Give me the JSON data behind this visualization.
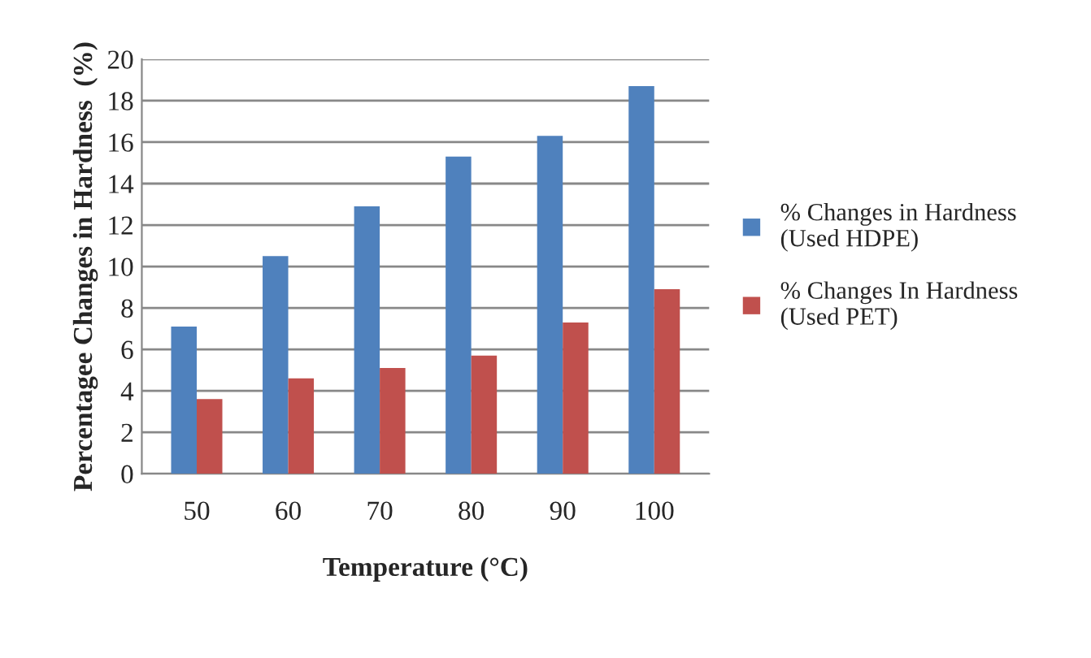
{
  "chart_data": {
    "type": "bar",
    "xlabel": "Temperature (°C)",
    "ylabel": "Percentagee Changes in Hardness  (%)",
    "categories": [
      "50",
      "60",
      "70",
      "80",
      "90",
      "100"
    ],
    "series": [
      {
        "name": "% Changes in Hardness\n(Used HDPE)",
        "color": "#4f81bd",
        "values": [
          7.1,
          10.5,
          12.9,
          15.3,
          16.3,
          18.7
        ]
      },
      {
        "name": "% Changes In Hardness\n(Used PET)",
        "color": "#c0504d",
        "values": [
          3.6,
          4.6,
          5.1,
          5.7,
          7.3,
          8.9
        ]
      }
    ],
    "ylim": [
      0,
      20
    ],
    "yticks": [
      0,
      2,
      4,
      6,
      8,
      10,
      12,
      14,
      16,
      18,
      20
    ],
    "grid": "y",
    "legend": "right"
  }
}
